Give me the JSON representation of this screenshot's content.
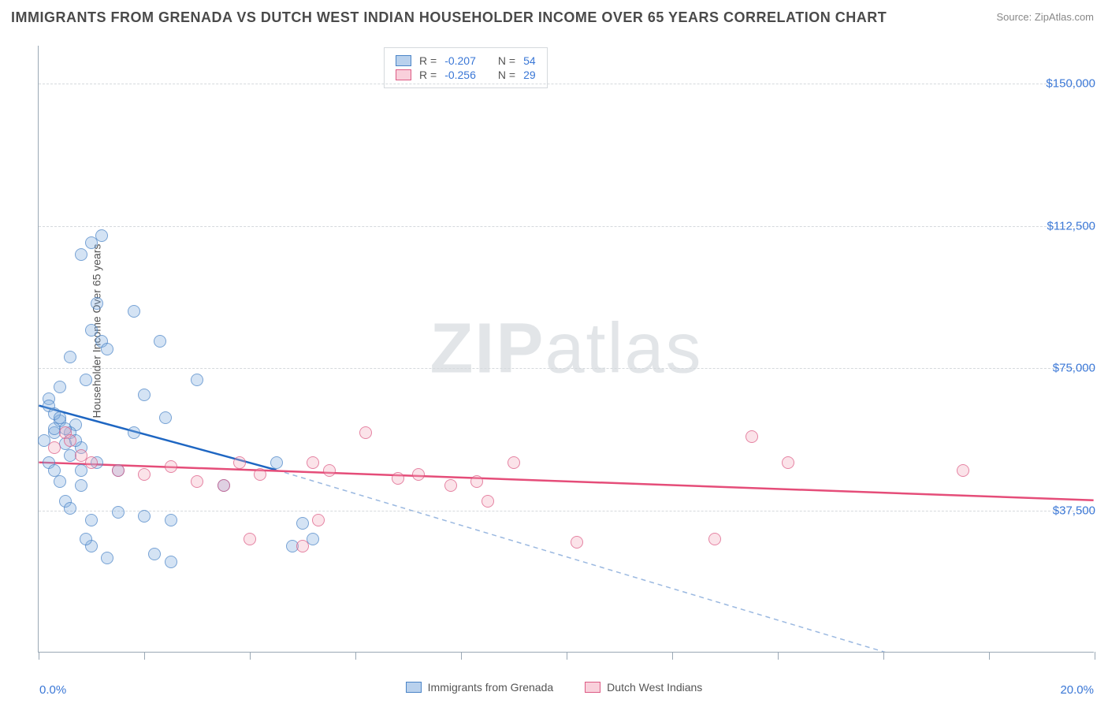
{
  "title": "IMMIGRANTS FROM GRENADA VS DUTCH WEST INDIAN HOUSEHOLDER INCOME OVER 65 YEARS CORRELATION CHART",
  "source": "Source: ZipAtlas.com",
  "watermark_a": "ZIP",
  "watermark_b": "atlas",
  "chart": {
    "type": "scatter",
    "x_axis": {
      "min": 0.0,
      "max": 20.0,
      "label_min": "0.0%",
      "label_max": "20.0%",
      "tick_step": 2.0
    },
    "y_axis": {
      "label": "Householder Income Over 65 years",
      "min": 0,
      "max": 160000,
      "grid_values": [
        37500,
        75000,
        112500,
        150000
      ],
      "grid_labels": [
        "$37,500",
        "$75,000",
        "$112,500",
        "$150,000"
      ]
    },
    "colors": {
      "background": "#ffffff",
      "grid": "#d5d9dd",
      "axis": "#9aa8b5",
      "blue_fill": "rgba(128,172,222,0.45)",
      "blue_stroke": "#4a84c7",
      "pink_fill": "rgba(244,170,190,0.45)",
      "pink_stroke": "#dd5b85",
      "blue_line": "#1e66c2",
      "pink_line": "#e54d79",
      "trend_dash": "#9ab8e0",
      "label_text": "#3a77d6"
    },
    "legend_top": [
      {
        "swatch": "blue",
        "r_label": "R =",
        "r": "-0.207",
        "n_label": "N =",
        "n": "54"
      },
      {
        "swatch": "pink",
        "r_label": "R =",
        "r": "-0.256",
        "n_label": "N =",
        "n": "29"
      }
    ],
    "legend_bottom": [
      {
        "swatch": "blue",
        "label": "Immigrants from Grenada"
      },
      {
        "swatch": "pink",
        "label": "Dutch West Indians"
      }
    ],
    "series": [
      {
        "name": "Immigrants from Grenada",
        "color": "blue",
        "marker_radius": 8,
        "points": [
          [
            0.2,
            67000
          ],
          [
            0.3,
            58000
          ],
          [
            0.4,
            61000
          ],
          [
            0.1,
            56000
          ],
          [
            0.5,
            55000
          ],
          [
            0.6,
            52000
          ],
          [
            0.3,
            59000
          ],
          [
            0.7,
            60000
          ],
          [
            0.2,
            50000
          ],
          [
            0.8,
            54000
          ],
          [
            0.9,
            72000
          ],
          [
            1.0,
            108000
          ],
          [
            1.2,
            110000
          ],
          [
            0.8,
            105000
          ],
          [
            1.1,
            92000
          ],
          [
            1.0,
            85000
          ],
          [
            1.2,
            82000
          ],
          [
            1.3,
            80000
          ],
          [
            1.8,
            90000
          ],
          [
            2.3,
            82000
          ],
          [
            0.4,
            45000
          ],
          [
            0.5,
            40000
          ],
          [
            0.6,
            38000
          ],
          [
            0.3,
            48000
          ],
          [
            0.8,
            44000
          ],
          [
            1.0,
            35000
          ],
          [
            1.5,
            37000
          ],
          [
            2.0,
            36000
          ],
          [
            2.5,
            35000
          ],
          [
            2.0,
            68000
          ],
          [
            2.4,
            62000
          ],
          [
            1.8,
            58000
          ],
          [
            3.0,
            72000
          ],
          [
            1.3,
            25000
          ],
          [
            1.0,
            28000
          ],
          [
            2.2,
            26000
          ],
          [
            2.5,
            24000
          ],
          [
            0.2,
            65000
          ],
          [
            0.3,
            63000
          ],
          [
            0.4,
            62000
          ],
          [
            0.6,
            58000
          ],
          [
            0.5,
            59000
          ],
          [
            0.7,
            56000
          ],
          [
            0.8,
            48000
          ],
          [
            0.4,
            70000
          ],
          [
            5.0,
            34000
          ],
          [
            4.5,
            50000
          ],
          [
            3.5,
            44000
          ],
          [
            4.8,
            28000
          ],
          [
            5.2,
            30000
          ],
          [
            0.9,
            30000
          ],
          [
            1.5,
            48000
          ],
          [
            1.1,
            50000
          ],
          [
            0.6,
            78000
          ]
        ],
        "trend": {
          "solid_from": [
            0.0,
            65000
          ],
          "solid_to": [
            4.5,
            48000
          ],
          "dash_to": [
            16.5,
            -2000
          ],
          "width": 2.5
        }
      },
      {
        "name": "Dutch West Indians",
        "color": "pink",
        "marker_radius": 8,
        "points": [
          [
            0.3,
            54000
          ],
          [
            0.5,
            58000
          ],
          [
            0.8,
            52000
          ],
          [
            1.0,
            50000
          ],
          [
            1.5,
            48000
          ],
          [
            2.0,
            47000
          ],
          [
            2.5,
            49000
          ],
          [
            3.0,
            45000
          ],
          [
            3.5,
            44000
          ],
          [
            4.0,
            30000
          ],
          [
            4.2,
            47000
          ],
          [
            5.0,
            28000
          ],
          [
            5.3,
            35000
          ],
          [
            5.5,
            48000
          ],
          [
            6.2,
            58000
          ],
          [
            6.8,
            46000
          ],
          [
            7.2,
            47000
          ],
          [
            7.8,
            44000
          ],
          [
            8.3,
            45000
          ],
          [
            8.5,
            40000
          ],
          [
            9.0,
            50000
          ],
          [
            10.2,
            29000
          ],
          [
            12.8,
            30000
          ],
          [
            13.5,
            57000
          ],
          [
            14.2,
            50000
          ],
          [
            17.5,
            48000
          ],
          [
            0.6,
            56000
          ],
          [
            5.2,
            50000
          ],
          [
            3.8,
            50000
          ]
        ],
        "trend": {
          "solid_from": [
            0.0,
            50000
          ],
          "solid_to": [
            20.0,
            40000
          ],
          "width": 2.5
        }
      }
    ]
  }
}
